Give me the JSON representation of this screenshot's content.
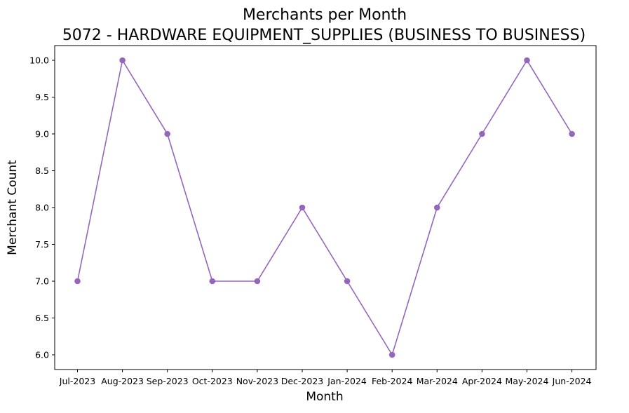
{
  "chart_data": {
    "type": "line",
    "title": "Merchants per Month",
    "subtitle": "5072 - HARDWARE EQUIPMENT_SUPPLIES (BUSINESS TO BUSINESS)",
    "xlabel": "Month",
    "ylabel": "Merchant Count",
    "categories": [
      "Jul-2023",
      "Aug-2023",
      "Sep-2023",
      "Oct-2023",
      "Nov-2023",
      "Dec-2023",
      "Jan-2024",
      "Feb-2024",
      "Mar-2024",
      "Apr-2024",
      "May-2024",
      "Jun-2024"
    ],
    "series": [
      {
        "values": [
          7,
          10,
          9,
          7,
          7,
          8,
          7,
          6,
          8,
          9,
          10,
          9
        ],
        "color": "#9467bd",
        "marker": "circle"
      }
    ],
    "ylim": [
      5.8,
      10.2
    ],
    "yticks": [
      6.0,
      6.5,
      7.0,
      7.5,
      8.0,
      8.5,
      9.0,
      9.5,
      10.0
    ],
    "ytick_labels": [
      "6.0",
      "6.5",
      "7.0",
      "7.5",
      "8.0",
      "8.5",
      "9.0",
      "9.5",
      "10.0"
    ],
    "grid": false,
    "legend": "none"
  }
}
